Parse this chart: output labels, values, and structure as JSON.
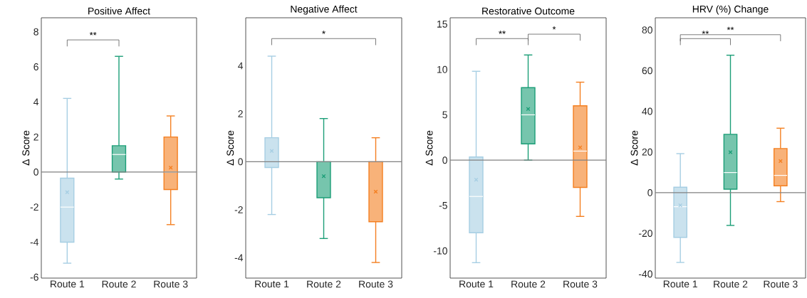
{
  "chart_data": [
    {
      "type": "box",
      "title": "Positive Affect",
      "ylabel": "Δ Score",
      "categories": [
        "Route 1",
        "Route 2",
        "Route 3"
      ],
      "boxes": [
        {
          "low": -5.2,
          "q1": -4.0,
          "median": -2.0,
          "q3": -0.35,
          "high": 4.2,
          "mean": -1.15
        },
        {
          "low": -0.4,
          "q1": 0.0,
          "median": 1.0,
          "q3": 1.5,
          "high": 6.6
        },
        {
          "low": -3.0,
          "q1": -1.0,
          "median": 0.0,
          "q3": 2.0,
          "high": 3.2,
          "mean": 0.25
        }
      ],
      "colors": [
        "#a6cee3",
        "#1b9e77",
        "#f47f20"
      ],
      "ylim": [
        -6.05,
        8.8
      ],
      "yticks": [
        -6,
        -4,
        -2,
        0,
        2,
        4,
        6,
        8
      ],
      "ref_lines": [
        {
          "axis": "y",
          "value": 0,
          "color": "#808080"
        }
      ],
      "annotations": [
        "**"
      ]
    },
    {
      "type": "box",
      "title": "Negative Affect",
      "ylabel": "Δ Score",
      "categories": [
        "Route 1",
        "Route 2",
        "Route 3"
      ],
      "boxes": [
        {
          "low": -2.2,
          "q1": -0.24,
          "median": 0.0,
          "q3": 1.0,
          "high": 4.4,
          "mean": 0.45
        },
        {
          "low": -3.2,
          "q1": -1.5,
          "median": 0.0,
          "q3": 0.0,
          "high": 1.8,
          "mean": -0.6
        },
        {
          "low": -4.2,
          "q1": -2.5,
          "median": 0.0,
          "q3": 0.0,
          "high": 1.0,
          "mean": -1.25
        }
      ],
      "colors": [
        "#a6cee3",
        "#1b9e77",
        "#f47f20"
      ],
      "ylim": [
        -4.85,
        6.0
      ],
      "yticks": [
        -4,
        -2,
        0,
        2,
        4
      ],
      "ref_lines": [
        {
          "axis": "y",
          "value": 0,
          "color": "#808080"
        }
      ],
      "annotations": [
        "*"
      ]
    },
    {
      "type": "box",
      "title": "Restorative Outcome",
      "ylabel": "Δ Score",
      "categories": [
        "Route 1",
        "Route 2",
        "Route 3"
      ],
      "boxes": [
        {
          "low": -11.3,
          "q1": -8.0,
          "median": -4.0,
          "q3": 0.35,
          "high": 9.8,
          "mean": -2.15
        },
        {
          "low": 0.0,
          "q1": 1.8,
          "median": 5.0,
          "q3": 8.0,
          "high": 11.6,
          "mean": 5.65
        },
        {
          "low": -6.2,
          "q1": -3.0,
          "median": 1.0,
          "q3": 6.0,
          "high": 8.6,
          "mean": 1.4
        }
      ],
      "colors": [
        "#a6cee3",
        "#1b9e77",
        "#f47f20"
      ],
      "ylim": [
        -13.0,
        15.7
      ],
      "yticks": [
        -10,
        -5,
        0,
        5,
        10,
        15
      ],
      "ref_lines": [
        {
          "axis": "y",
          "value": 0,
          "color": "#808080"
        }
      ],
      "annotations": [
        "**",
        "*"
      ]
    },
    {
      "type": "box",
      "title": "HRV (%) Change",
      "ylabel": "Δ Score",
      "categories": [
        "Route 1",
        "Route 2",
        "Route 3"
      ],
      "boxes": [
        {
          "low": -34.3,
          "q1": -22.0,
          "median": -6.9,
          "q3": 2.7,
          "high": 19.2,
          "mean": -6.2
        },
        {
          "low": -16.1,
          "q1": 1.7,
          "median": 9.9,
          "q3": 28.7,
          "high": 67.6,
          "mean": 19.9
        },
        {
          "low": -4.4,
          "q1": 3.4,
          "median": 8.5,
          "q3": 21.7,
          "high": 31.7,
          "mean": 15.5
        }
      ],
      "colors": [
        "#a6cee3",
        "#1b9e77",
        "#f47f20"
      ],
      "ylim": [
        -42,
        86
      ],
      "yticks": [
        -40,
        -20,
        0,
        20,
        40,
        60,
        80
      ],
      "ref_lines": [
        {
          "axis": "y",
          "value": 0,
          "color": "#808080"
        }
      ],
      "annotations": [
        "**",
        "**"
      ]
    }
  ]
}
